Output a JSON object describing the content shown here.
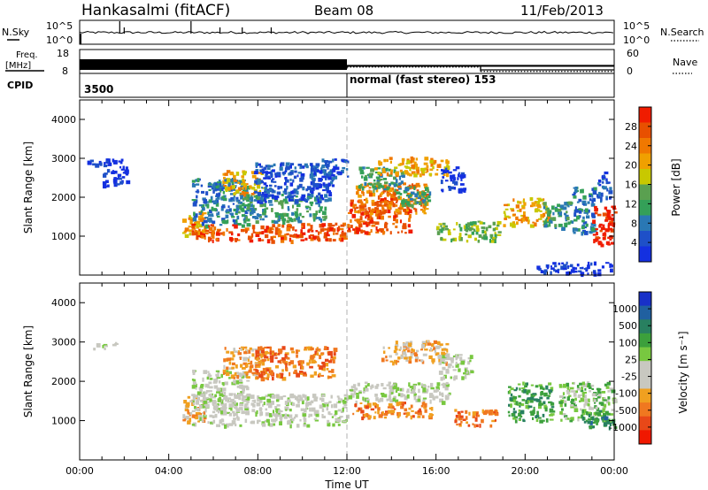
{
  "header": {
    "station": "Hankasalmi (fitACF)",
    "beam": "Beam 08",
    "date": "11/Feb/2013"
  },
  "params_panel": {
    "nsky_label": "N.Sky",
    "nsky_ticks": [
      "10^5",
      "10^0"
    ],
    "nsearch_label": "N.Search",
    "nsearch_ticks": [
      "10^5",
      "10^0"
    ],
    "freq_label": "Freq.",
    "freq_unit": "[MHz]",
    "freq_ticks": [
      "18",
      "8"
    ],
    "nave_label": "Nave",
    "nave_ticks": [
      "60",
      "0"
    ],
    "cpid_label": "CPID",
    "cpid_segments": [
      {
        "start_hour": 0,
        "end_hour": 12,
        "label": "3500"
      },
      {
        "start_hour": 12,
        "end_hour": 24,
        "label": "normal (fast stereo) 153"
      }
    ],
    "freq_steps": [
      {
        "start_hour": 0,
        "end_hour": 12,
        "value": 11.5
      },
      {
        "start_hour": 12,
        "end_hour": 24,
        "value": 11.0
      }
    ],
    "nave_steps": [
      {
        "start_hour": 0,
        "end_hour": 12,
        "value": 12
      },
      {
        "start_hour": 12,
        "end_hour": 18,
        "value": 16
      },
      {
        "start_hour": 18,
        "end_hour": 24,
        "value": 5
      }
    ]
  },
  "chart_data": [
    {
      "type": "heatmap",
      "panel": "power",
      "ylabel": "Slant Range [km]",
      "ylim": [
        0,
        4500
      ],
      "yticks": [
        "1000",
        "2000",
        "3000",
        "4000"
      ],
      "colorbar": {
        "label": "Power [dB]",
        "ticks": [
          "4",
          "8",
          "12",
          "16",
          "20",
          "24",
          "28"
        ],
        "colors": [
          "#1430e0",
          "#1e50c8",
          "#2a78b4",
          "#34a058",
          "#5aa050",
          "#c8c800",
          "#f0a000",
          "#f07800",
          "#e85000",
          "#f01c00"
        ]
      },
      "regions": [
        {
          "x": [
            0.3,
            1.6
          ],
          "y": [
            2850,
            3000
          ],
          "level": 0
        },
        {
          "x": [
            1.0,
            2.1
          ],
          "y": [
            2300,
            3000
          ],
          "level": 0
        },
        {
          "x": [
            4.6,
            5.6
          ],
          "y": [
            1000,
            1650
          ],
          "level": 6
        },
        {
          "x": [
            5.0,
            7.5
          ],
          "y": [
            1300,
            2500
          ],
          "level": 2
        },
        {
          "x": [
            6.4,
            8.2
          ],
          "y": [
            2100,
            2700
          ],
          "level": 6
        },
        {
          "x": [
            5.0,
            12.0
          ],
          "y": [
            900,
            1350
          ],
          "level": 8
        },
        {
          "x": [
            7.0,
            11.0
          ],
          "y": [
            1400,
            2100
          ],
          "level": 3
        },
        {
          "x": [
            7.8,
            11.4
          ],
          "y": [
            1900,
            2900
          ],
          "level": 1
        },
        {
          "x": [
            10.3,
            12.0
          ],
          "y": [
            2500,
            3000
          ],
          "level": 1
        },
        {
          "x": [
            12.0,
            14.8
          ],
          "y": [
            1100,
            2000
          ],
          "level": 8
        },
        {
          "x": [
            12.3,
            15.6
          ],
          "y": [
            1600,
            2400
          ],
          "level": 7
        },
        {
          "x": [
            12.5,
            14.5
          ],
          "y": [
            2200,
            2800
          ],
          "level": 3
        },
        {
          "x": [
            13.2,
            16.5
          ],
          "y": [
            2600,
            3050
          ],
          "level": 6
        },
        {
          "x": [
            14.2,
            15.7
          ],
          "y": [
            1800,
            2300
          ],
          "level": 3
        },
        {
          "x": [
            16.0,
            18.8
          ],
          "y": [
            900,
            1400
          ],
          "level": 4
        },
        {
          "x": [
            16.2,
            17.3
          ],
          "y": [
            2200,
            2800
          ],
          "level": 0
        },
        {
          "x": [
            19.0,
            21.0
          ],
          "y": [
            1300,
            2000
          ],
          "level": 6
        },
        {
          "x": [
            20.8,
            22.2
          ],
          "y": [
            1200,
            1900
          ],
          "level": 3
        },
        {
          "x": [
            22.1,
            23.1
          ],
          "y": [
            1100,
            2300
          ],
          "level": 2
        },
        {
          "x": [
            23.0,
            24.0
          ],
          "y": [
            800,
            1800
          ],
          "level": 9
        },
        {
          "x": [
            23.2,
            23.8
          ],
          "y": [
            1900,
            2700
          ],
          "level": 1
        },
        {
          "x": [
            20.5,
            23.9
          ],
          "y": [
            50,
            350
          ],
          "level": 0
        }
      ]
    },
    {
      "type": "heatmap",
      "panel": "velocity",
      "xlabel": "Time UT",
      "ylabel": "Slant Range [km]",
      "ylim": [
        0,
        4500
      ],
      "yticks": [
        "1000",
        "2000",
        "3000",
        "4000"
      ],
      "xticks": [
        "00:00",
        "04:00",
        "08:00",
        "12:00",
        "16:00",
        "20:00",
        "00:00"
      ],
      "xlim_hours": [
        0,
        24
      ],
      "colorbar": {
        "label": "Velocity [m s⁻¹]",
        "ticks": [
          "1000",
          "500",
          "100",
          "25",
          "-25",
          "-100",
          "-500",
          "-1000"
        ],
        "colors": [
          "#1830c8",
          "#2060a0",
          "#288060",
          "#3ca03c",
          "#78c840",
          "#c8c8c0",
          "#c8c8c0",
          "#f0a020",
          "#f07820",
          "#e84818",
          "#f01800"
        ]
      },
      "regions": [
        {
          "x": [
            0.3,
            1.6
          ],
          "y": [
            2850,
            3000
          ],
          "level": 5
        },
        {
          "x": [
            4.6,
            5.6
          ],
          "y": [
            1000,
            1650
          ],
          "level": 7
        },
        {
          "x": [
            5.0,
            12.0
          ],
          "y": [
            900,
            1700
          ],
          "level": 5
        },
        {
          "x": [
            5.0,
            7.5
          ],
          "y": [
            1500,
            2300
          ],
          "level": 5
        },
        {
          "x": [
            6.4,
            8.2
          ],
          "y": [
            2100,
            2900
          ],
          "level": 7
        },
        {
          "x": [
            7.8,
            11.4
          ],
          "y": [
            2100,
            2900
          ],
          "level": 8
        },
        {
          "x": [
            12.0,
            16.6
          ],
          "y": [
            1500,
            2000
          ],
          "level": 5
        },
        {
          "x": [
            13.5,
            16.5
          ],
          "y": [
            2500,
            3050
          ],
          "level": 7
        },
        {
          "x": [
            12.2,
            15.8
          ],
          "y": [
            1100,
            1500
          ],
          "level": 8
        },
        {
          "x": [
            16.8,
            18.7
          ],
          "y": [
            900,
            1300
          ],
          "level": 8
        },
        {
          "x": [
            16.0,
            17.6
          ],
          "y": [
            2100,
            2700
          ],
          "level": 5
        },
        {
          "x": [
            19.2,
            21.2
          ],
          "y": [
            1000,
            2000
          ],
          "level": 3
        },
        {
          "x": [
            21.5,
            24.0
          ],
          "y": [
            1000,
            2000
          ],
          "level": 4
        },
        {
          "x": [
            22.5,
            24.0
          ],
          "y": [
            850,
            1300
          ],
          "level": 2
        }
      ]
    }
  ]
}
